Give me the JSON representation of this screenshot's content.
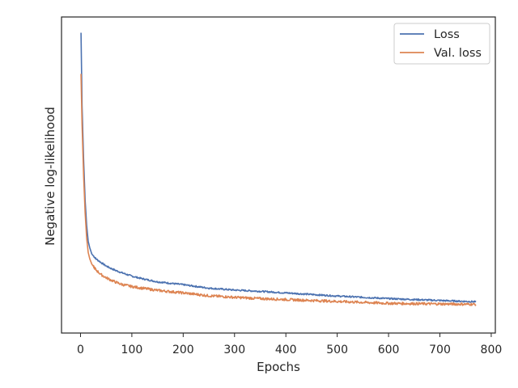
{
  "chart_data": {
    "type": "line",
    "title": "",
    "xlabel": "Epochs",
    "ylabel": "Negative log-likelihood",
    "xlim": [
      -37,
      808
    ],
    "ylim": [
      0,
      1
    ],
    "xticks": [
      0,
      100,
      200,
      300,
      400,
      500,
      600,
      700,
      800
    ],
    "y_tick_labels_shown": false,
    "grid": false,
    "legend_position": "top-right",
    "series": [
      {
        "name": "Loss",
        "color": "#4c72b0",
        "points": [
          [
            1,
            0.95
          ],
          [
            3,
            0.72
          ],
          [
            6,
            0.55
          ],
          [
            9,
            0.42
          ],
          [
            12,
            0.34
          ],
          [
            15,
            0.29
          ],
          [
            18,
            0.27
          ],
          [
            22,
            0.25
          ],
          [
            30,
            0.235
          ],
          [
            40,
            0.223
          ],
          [
            50,
            0.212
          ],
          [
            60,
            0.204
          ],
          [
            70,
            0.197
          ],
          [
            80,
            0.191
          ],
          [
            100,
            0.18
          ],
          [
            120,
            0.172
          ],
          [
            150,
            0.162
          ],
          [
            200,
            0.153
          ],
          [
            250,
            0.142
          ],
          [
            300,
            0.136
          ],
          [
            350,
            0.132
          ],
          [
            400,
            0.127
          ],
          [
            450,
            0.122
          ],
          [
            500,
            0.117
          ],
          [
            550,
            0.113
          ],
          [
            600,
            0.109
          ],
          [
            650,
            0.106
          ],
          [
            700,
            0.103
          ],
          [
            770,
            0.099
          ]
        ]
      },
      {
        "name": "Val. loss",
        "color": "#dd8452",
        "points": [
          [
            1,
            0.82
          ],
          [
            3,
            0.66
          ],
          [
            6,
            0.5
          ],
          [
            9,
            0.38
          ],
          [
            12,
            0.3
          ],
          [
            15,
            0.255
          ],
          [
            18,
            0.235
          ],
          [
            22,
            0.218
          ],
          [
            30,
            0.2
          ],
          [
            40,
            0.185
          ],
          [
            50,
            0.175
          ],
          [
            60,
            0.167
          ],
          [
            70,
            0.16
          ],
          [
            80,
            0.154
          ],
          [
            100,
            0.147
          ],
          [
            120,
            0.142
          ],
          [
            150,
            0.135
          ],
          [
            200,
            0.127
          ],
          [
            250,
            0.118
          ],
          [
            300,
            0.113
          ],
          [
            350,
            0.109
          ],
          [
            400,
            0.106
          ],
          [
            450,
            0.103
          ],
          [
            500,
            0.1
          ],
          [
            550,
            0.097
          ],
          [
            600,
            0.094
          ],
          [
            650,
            0.093
          ],
          [
            700,
            0.092
          ],
          [
            770,
            0.091
          ]
        ]
      }
    ]
  }
}
